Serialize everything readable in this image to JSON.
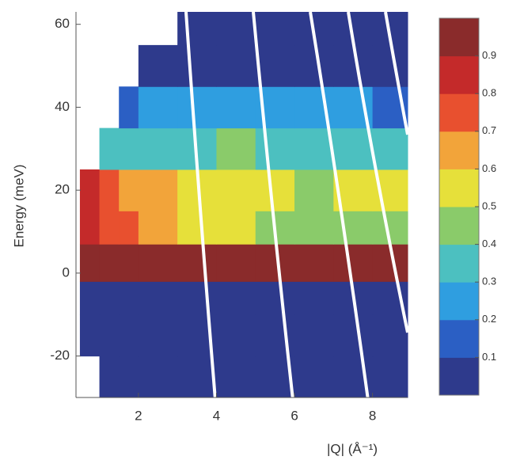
{
  "chart_data": {
    "type": "heatmap",
    "xlabel": "|Q| (Å⁻¹)",
    "ylabel": "Energy (meV)",
    "xbins": [
      0.5,
      1,
      1.5,
      2,
      3,
      4,
      5,
      6,
      7,
      8,
      9
    ],
    "ybins": [
      -30,
      -20,
      -10,
      -2,
      7,
      15,
      25,
      35,
      45,
      55,
      63
    ],
    "z": [
      [
        null,
        0.03,
        0.03,
        0.03,
        0.03,
        0.03,
        0.03,
        0.03,
        0.03,
        0.03
      ],
      [
        0.03,
        0.03,
        0.03,
        0.03,
        0.03,
        0.03,
        0.03,
        0.03,
        0.03,
        0.03
      ],
      [
        0.04,
        0.04,
        0.04,
        0.04,
        0.04,
        0.04,
        0.04,
        0.04,
        0.04,
        0.04
      ],
      [
        1,
        1,
        1,
        1,
        1,
        1,
        1,
        1,
        1,
        1
      ],
      [
        0.8,
        0.75,
        0.7,
        0.65,
        0.55,
        0.5,
        0.45,
        0.45,
        0.45,
        0.4
      ],
      [
        0.8,
        0.7,
        0.65,
        0.6,
        0.55,
        0.5,
        0.5,
        0.45,
        0.5,
        0.5
      ],
      [
        null,
        0.35,
        0.35,
        0.3,
        0.35,
        0.4,
        0.35,
        0.35,
        0.3,
        0.3
      ],
      [
        null,
        null,
        0.15,
        0.2,
        0.2,
        0.25,
        0.2,
        0.2,
        0.2,
        0.15
      ],
      [
        null,
        null,
        null,
        0.08,
        0.08,
        0.08,
        0.08,
        0.08,
        0.08,
        0.08
      ],
      [
        null,
        null,
        null,
        null,
        0.05,
        0.05,
        0.05,
        0.05,
        0.05,
        0.05
      ]
    ],
    "xlim": [
      0.4,
      8.9
    ],
    "xticks": [
      2,
      4,
      6,
      8
    ],
    "ylim": [
      -30,
      63
    ],
    "yticks": [
      -20,
      0,
      20,
      40,
      60
    ],
    "zlim": [
      0,
      1
    ],
    "zticks": [
      0.1,
      0.2,
      0.3,
      0.4,
      0.5,
      0.6,
      0.7,
      0.8,
      0.9
    ],
    "colormap": [
      "#2e3a8c",
      "#2b5fc4",
      "#2f9ee0",
      "#4cc0c0",
      "#8acb6a",
      "#e6e03a",
      "#f2a43a",
      "#e8502f",
      "#c42a2a",
      "#8a2b2b"
    ]
  }
}
